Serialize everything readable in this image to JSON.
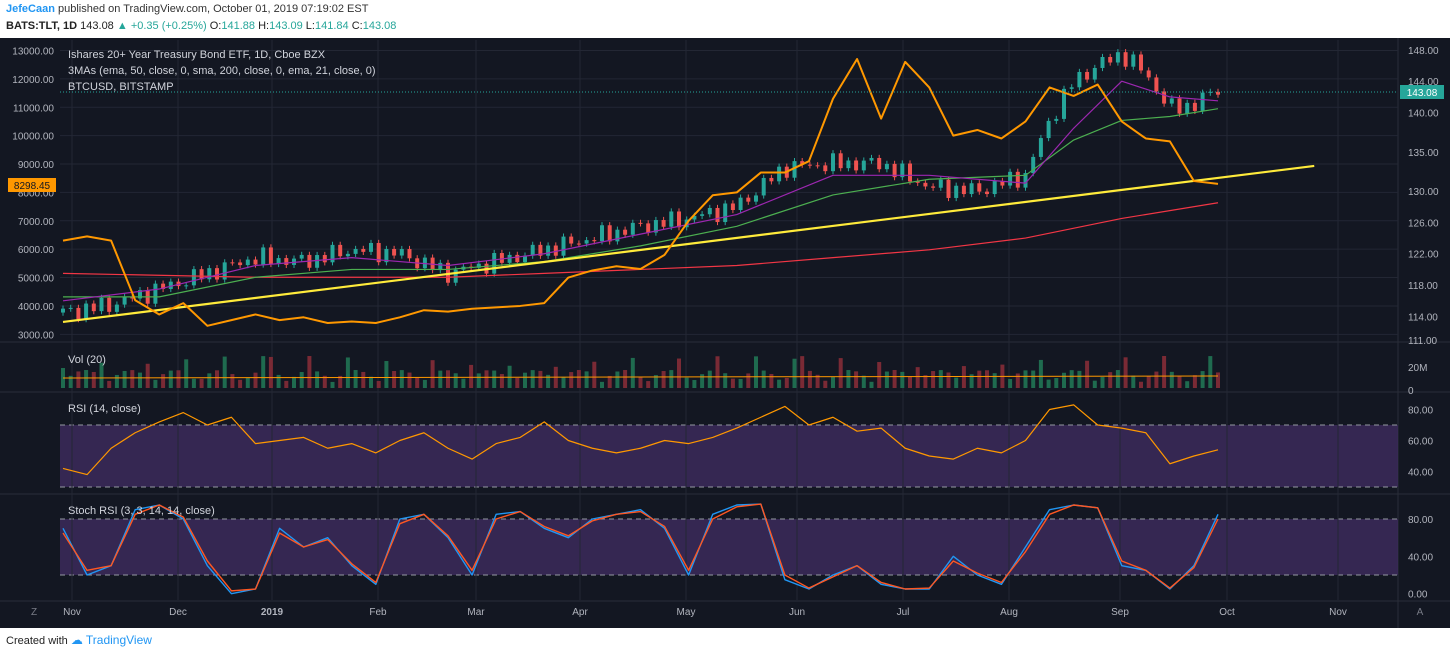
{
  "header": {
    "author": "JefeCaan",
    "published": "published on TradingView.com, October 01, 2019 07:19:02 EST",
    "symbol": "BATS:TLT, 1D",
    "last": "143.08",
    "change": "+0.35 (+0.25%)",
    "o_label": "O:",
    "o_value": "141.88",
    "h_label": "H:",
    "h_value": "143.09",
    "l_label": "L:",
    "l_value": "141.84",
    "c_label": "C:",
    "c_value": "143.08"
  },
  "legend": {
    "title": "Ishares 20+ Year Treasury Bond ETF, 1D, Cboe BZX",
    "mas": "3MAs (ema, 50, close, 0, sma, 200, close, 0, ema, 21, close, 0)",
    "compare": "BTCUSD, BITSTAMP"
  },
  "panes": {
    "volume": "Vol (20)",
    "rsi": "RSI (14, close)",
    "stoch": "Stoch RSI (3, 3, 14, 14, close)"
  },
  "footer": {
    "created_with": "Created with",
    "brand": "TradingView"
  },
  "colors": {
    "background": "#131722",
    "grid": "#232734",
    "btc": "#ff9800",
    "ema50": "#4caf50",
    "sma200": "#f23645",
    "ema21": "#9c27b0",
    "trendline": "#ffeb3b",
    "up": "#26a69a",
    "down": "#ef5350",
    "rsi_band": "#3c2a5a",
    "stoch_band": "#3c2a5a",
    "stoch_k": "#2196f3",
    "stoch_d": "#ff5722",
    "last_price_label": "#26a69a",
    "btc_label": "#ff9800"
  },
  "chart_data": {
    "type": "line",
    "x_axis": {
      "labels": [
        "Nov",
        "Dec",
        "2019",
        "Feb",
        "Mar",
        "Apr",
        "May",
        "Jun",
        "Jul",
        "Aug",
        "Sep",
        "Oct",
        "Nov"
      ]
    },
    "left_axis": {
      "ticks": [
        "13000.00",
        "12000.00",
        "11000.00",
        "10000.00",
        "9000.00",
        "8000.00",
        "7000.00",
        "6000.00",
        "5000.00",
        "4000.00",
        "3000.00"
      ],
      "current_label": "8298.45",
      "range": [
        2800,
        13300
      ]
    },
    "right_axis": {
      "ticks": [
        "148.00",
        "144.00",
        "140.00",
        "135.00",
        "130.00",
        "126.00",
        "122.00",
        "118.00",
        "114.00",
        "111.00"
      ],
      "current_label": "143.08",
      "range": [
        111,
        149
      ]
    },
    "volume_axis": {
      "ticks": [
        "20M",
        "0"
      ]
    },
    "rsi_axis": {
      "ticks": [
        "80.00",
        "60.00",
        "40.00"
      ],
      "bands": [
        30,
        70
      ]
    },
    "stoch_axis": {
      "ticks": [
        "80.00",
        "40.00",
        "0.00"
      ],
      "bands": [
        20,
        80
      ]
    },
    "series": [
      {
        "name": "BTCUSD, BITSTAMP",
        "axis": "left",
        "x": [
          0,
          5,
          10,
          15,
          20,
          25,
          30,
          35,
          40,
          45,
          50,
          55,
          60,
          65,
          70,
          75,
          80,
          85,
          90,
          95,
          100,
          105,
          110,
          115,
          120,
          125,
          130,
          135,
          140,
          145,
          150,
          155,
          160,
          165,
          170,
          175,
          180,
          185,
          190,
          195,
          200,
          205,
          210,
          215,
          220,
          225,
          230,
          235,
          240
        ],
        "values": [
          6300,
          6450,
          6300,
          4200,
          3700,
          4100,
          3300,
          3500,
          3700,
          3500,
          3600,
          3400,
          3450,
          3400,
          3600,
          3850,
          3800,
          3900,
          3950,
          4000,
          4100,
          5000,
          5250,
          5400,
          5300,
          5800,
          7000,
          7900,
          8000,
          8700,
          8700,
          9100,
          11300,
          12700,
          10600,
          12600,
          11700,
          10000,
          10200,
          9900,
          10500,
          11700,
          11400,
          11800,
          10500,
          9900,
          9800,
          8400,
          8300
        ]
      },
      {
        "name": "Ishares 20+ Year Treasury Bond ETF",
        "axis": "right",
        "x": [
          0,
          10,
          20,
          30,
          40,
          50,
          60,
          70,
          80,
          90,
          100,
          110,
          120,
          130,
          140,
          150,
          160,
          170,
          180,
          190,
          200,
          205,
          210,
          215,
          220,
          225,
          230,
          235,
          240
        ],
        "values": [
          114.5,
          115.5,
          117.5,
          119.5,
          121.5,
          121.0,
          122.5,
          122.0,
          119.5,
          121.0,
          122.5,
          124.0,
          125.5,
          126.5,
          128.0,
          133.0,
          133.5,
          133.5,
          130.5,
          130.0,
          132.0,
          139.0,
          144.0,
          146.0,
          147.5,
          145.0,
          140.5,
          141.0,
          143.0
        ]
      },
      {
        "name": "EMA 50",
        "axis": "right",
        "x": [
          0,
          20,
          40,
          60,
          80,
          100,
          120,
          140,
          160,
          180,
          200,
          210,
          220,
          230,
          240
        ],
        "values": [
          116.5,
          116.5,
          119.0,
          120.0,
          120.0,
          121.0,
          123.0,
          125.5,
          129.5,
          131.5,
          132.0,
          136.5,
          139.0,
          139.5,
          140.5
        ]
      },
      {
        "name": "SMA 200",
        "axis": "right",
        "x": [
          0,
          40,
          80,
          100,
          120,
          140,
          160,
          180,
          200,
          220,
          240
        ],
        "values": [
          119.5,
          119.0,
          119.0,
          119.5,
          120.0,
          120.5,
          121.5,
          122.5,
          124.0,
          126.5,
          128.5
        ]
      },
      {
        "name": "EMA 21",
        "axis": "right",
        "x": [
          0,
          20,
          40,
          60,
          80,
          100,
          120,
          140,
          160,
          180,
          200,
          210,
          220,
          230,
          240
        ],
        "values": [
          116.0,
          117.5,
          120.5,
          121.5,
          120.5,
          122.0,
          124.5,
          127.0,
          132.0,
          132.0,
          131.0,
          138.0,
          144.0,
          142.0,
          141.5
        ]
      },
      {
        "name": "Trendline",
        "axis": "right",
        "x": [
          0,
          260
        ],
        "values": [
          113.3,
          133.2
        ]
      },
      {
        "name": "RSI (14, close)",
        "pane": "rsi",
        "x": [
          0,
          5,
          10,
          15,
          20,
          25,
          30,
          35,
          40,
          45,
          50,
          55,
          60,
          65,
          70,
          75,
          80,
          85,
          90,
          95,
          100,
          105,
          110,
          115,
          120,
          125,
          130,
          135,
          140,
          145,
          150,
          155,
          160,
          165,
          170,
          175,
          180,
          185,
          190,
          195,
          200,
          205,
          210,
          215,
          220,
          225,
          230,
          235,
          240
        ],
        "values": [
          42,
          38,
          55,
          65,
          72,
          78,
          70,
          75,
          58,
          60,
          62,
          55,
          58,
          52,
          60,
          65,
          55,
          48,
          58,
          62,
          72,
          60,
          55,
          52,
          55,
          60,
          58,
          62,
          68,
          75,
          82,
          70,
          75,
          66,
          68,
          55,
          50,
          48,
          55,
          52,
          60,
          80,
          83,
          70,
          68,
          65,
          45,
          50,
          54
        ]
      },
      {
        "name": "%K",
        "pane": "stoch",
        "x": [
          0,
          5,
          10,
          15,
          20,
          25,
          30,
          35,
          40,
          45,
          50,
          55,
          60,
          65,
          70,
          75,
          80,
          85,
          90,
          95,
          100,
          105,
          110,
          115,
          120,
          125,
          130,
          135,
          140,
          145,
          150,
          155,
          160,
          165,
          170,
          175,
          180,
          185,
          190,
          195,
          200,
          205,
          210,
          215,
          220,
          225,
          230,
          235,
          240
        ],
        "values": [
          70,
          20,
          30,
          90,
          95,
          80,
          30,
          0,
          5,
          70,
          50,
          60,
          30,
          10,
          80,
          85,
          60,
          20,
          85,
          88,
          70,
          60,
          80,
          85,
          90,
          70,
          20,
          85,
          95,
          96,
          15,
          5,
          20,
          30,
          10,
          5,
          5,
          40,
          20,
          10,
          50,
          90,
          95,
          92,
          30,
          25,
          5,
          30,
          85
        ]
      },
      {
        "name": "%D",
        "pane": "stoch",
        "x": [
          0,
          5,
          10,
          15,
          20,
          25,
          30,
          35,
          40,
          45,
          50,
          55,
          60,
          65,
          70,
          75,
          80,
          85,
          90,
          95,
          100,
          105,
          110,
          115,
          120,
          125,
          130,
          135,
          140,
          145,
          150,
          155,
          160,
          165,
          170,
          175,
          180,
          185,
          190,
          195,
          200,
          205,
          210,
          215,
          220,
          225,
          230,
          235,
          240
        ],
        "values": [
          65,
          25,
          30,
          85,
          95,
          82,
          35,
          3,
          5,
          65,
          50,
          58,
          32,
          12,
          75,
          85,
          62,
          25,
          80,
          88,
          72,
          62,
          78,
          85,
          88,
          72,
          25,
          80,
          93,
          96,
          20,
          6,
          18,
          30,
          12,
          5,
          6,
          35,
          22,
          12,
          45,
          85,
          95,
          92,
          35,
          25,
          6,
          28,
          80
        ]
      }
    ]
  }
}
